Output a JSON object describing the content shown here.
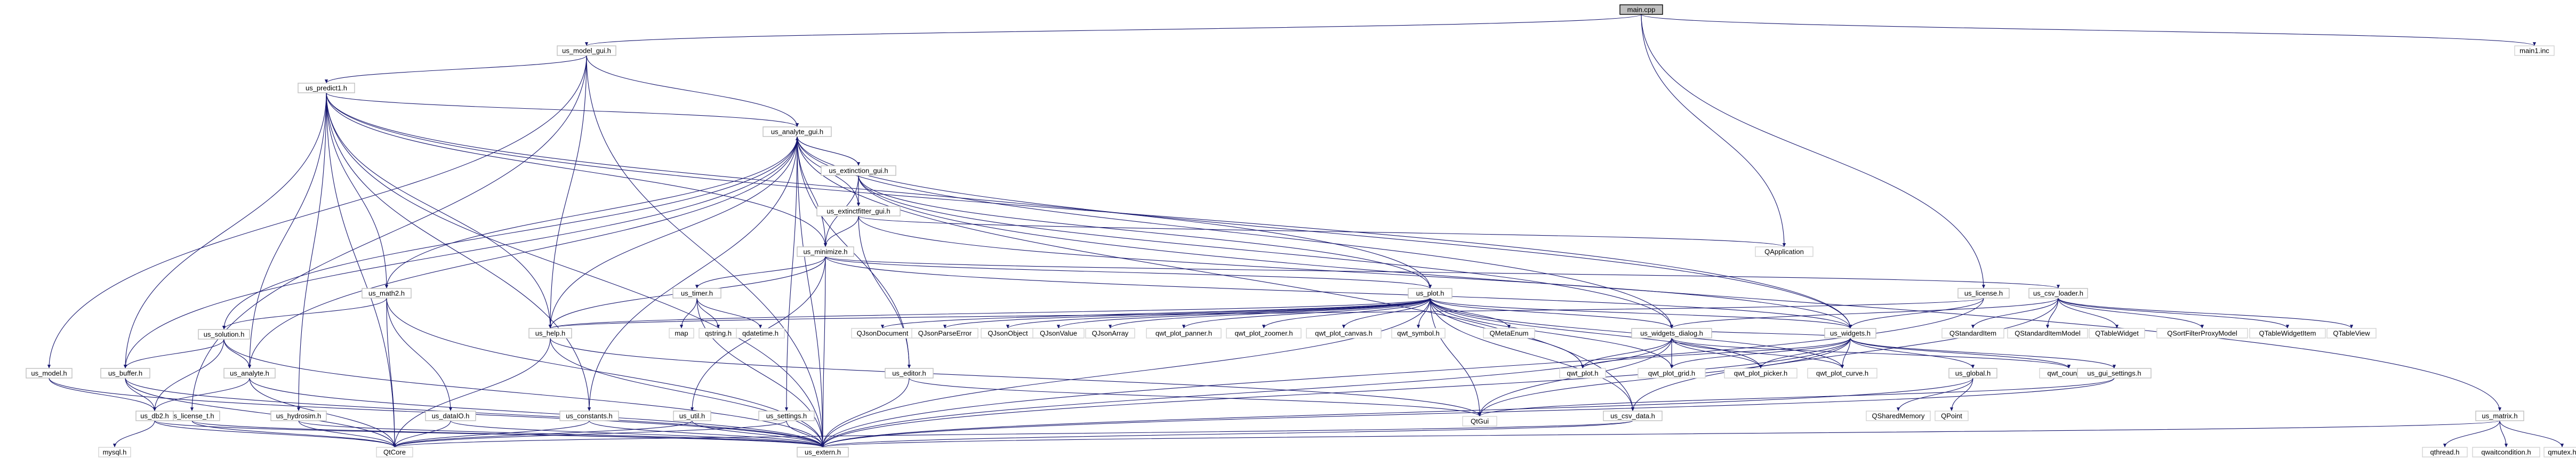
{
  "diagram": {
    "type": "include-dependency-graph",
    "root": "main.cpp",
    "nodes": [
      {
        "id": "main_cpp",
        "label": "main.cpp"
      },
      {
        "id": "us_model_gui",
        "label": "us_model_gui.h"
      },
      {
        "id": "main1_inc",
        "label": "main1.inc"
      },
      {
        "id": "us_predict1",
        "label": "us_predict1.h"
      },
      {
        "id": "us_analyte_gui",
        "label": "us_analyte_gui.h"
      },
      {
        "id": "us_extinction_gui",
        "label": "us_extinction_gui.h"
      },
      {
        "id": "us_extinctfitter_gui",
        "label": "us_extinctfitter_gui.h"
      },
      {
        "id": "qapplication",
        "label": "QApplication"
      },
      {
        "id": "us_minimize",
        "label": "us_minimize.h"
      },
      {
        "id": "us_math2",
        "label": "us_math2.h"
      },
      {
        "id": "us_timer",
        "label": "us_timer.h"
      },
      {
        "id": "us_plot",
        "label": "us_plot.h"
      },
      {
        "id": "us_license",
        "label": "us_license.h"
      },
      {
        "id": "us_csv_loader",
        "label": "us_csv_loader.h"
      },
      {
        "id": "us_help",
        "label": "us_help.h"
      },
      {
        "id": "map",
        "label": "map"
      },
      {
        "id": "qstring",
        "label": "qstring.h"
      },
      {
        "id": "qdatetime",
        "label": "qdatetime.h"
      },
      {
        "id": "qjsondocument",
        "label": "QJsonDocument"
      },
      {
        "id": "qjsonparseerror",
        "label": "QJsonParseError"
      },
      {
        "id": "qjsonobject",
        "label": "QJsonObject"
      },
      {
        "id": "qjsonvalue",
        "label": "QJsonValue"
      },
      {
        "id": "qjsonarray",
        "label": "QJsonArray"
      },
      {
        "id": "qwt_plot_panner",
        "label": "qwt_plot_panner.h"
      },
      {
        "id": "qwt_plot_zoomer",
        "label": "qwt_plot_zoomer.h"
      },
      {
        "id": "qwt_plot_canvas",
        "label": "qwt_plot_canvas.h"
      },
      {
        "id": "qwt_symbol",
        "label": "qwt_symbol.h"
      },
      {
        "id": "qmetaenum",
        "label": "QMetaEnum"
      },
      {
        "id": "us_widgets_dialog",
        "label": "us_widgets_dialog.h"
      },
      {
        "id": "us_widgets",
        "label": "us_widgets.h"
      },
      {
        "id": "qstandarditem",
        "label": "QStandardItem"
      },
      {
        "id": "qstandarditemmodel",
        "label": "QStandardItemModel"
      },
      {
        "id": "qtablewidget",
        "label": "QTableWidget"
      },
      {
        "id": "qsortfilterproxymodel",
        "label": "QSortFilterProxyModel"
      },
      {
        "id": "qtablewidgetitem",
        "label": "QTableWidgetItem"
      },
      {
        "id": "qtableview",
        "label": "QTableView"
      },
      {
        "id": "us_solution",
        "label": "us_solution.h"
      },
      {
        "id": "us_model",
        "label": "us_model.h"
      },
      {
        "id": "us_buffer",
        "label": "us_buffer.h"
      },
      {
        "id": "us_analyte",
        "label": "us_analyte.h"
      },
      {
        "id": "us_license_t",
        "label": "us_license_t.h"
      },
      {
        "id": "us_db2",
        "label": "us_db2.h"
      },
      {
        "id": "mysql",
        "label": "mysql.h"
      },
      {
        "id": "us_hydrosim",
        "label": "us_hydrosim.h"
      },
      {
        "id": "us_dataio",
        "label": "us_dataIO.h"
      },
      {
        "id": "us_constants",
        "label": "us_constants.h"
      },
      {
        "id": "us_util",
        "label": "us_util.h"
      },
      {
        "id": "us_settings",
        "label": "us_settings.h"
      },
      {
        "id": "us_editor",
        "label": "us_editor.h"
      },
      {
        "id": "qtcore",
        "label": "QtCore"
      },
      {
        "id": "qtgui",
        "label": "QtGui"
      },
      {
        "id": "us_extern",
        "label": "us_extern.h"
      },
      {
        "id": "qwt_plot",
        "label": "qwt_plot.h"
      },
      {
        "id": "qwt_plot_grid",
        "label": "qwt_plot_grid.h"
      },
      {
        "id": "qwt_plot_picker",
        "label": "qwt_plot_picker.h"
      },
      {
        "id": "qwt_plot_curve",
        "label": "qwt_plot_curve.h"
      },
      {
        "id": "qwt_counter",
        "label": "qwt_counter.h"
      },
      {
        "id": "us_global",
        "label": "us_global.h"
      },
      {
        "id": "us_gui_settings",
        "label": "us_gui_settings.h"
      },
      {
        "id": "us_csv_data",
        "label": "us_csv_data.h"
      },
      {
        "id": "qsharedmemory",
        "label": "QSharedMemory"
      },
      {
        "id": "qpoint",
        "label": "QPoint"
      },
      {
        "id": "us_matrix",
        "label": "us_matrix.h"
      },
      {
        "id": "qthread",
        "label": "qthread.h"
      },
      {
        "id": "qwaitcondition",
        "label": "qwaitcondition.h"
      },
      {
        "id": "qmutex",
        "label": "qmutex.h"
      }
    ],
    "edges": [
      [
        "main_cpp",
        "us_model_gui"
      ],
      [
        "main_cpp",
        "main1_inc"
      ],
      [
        "main_cpp",
        "qapplication"
      ],
      [
        "main_cpp",
        "us_license"
      ],
      [
        "us_model_gui",
        "us_predict1"
      ],
      [
        "us_model_gui",
        "us_analyte_gui"
      ],
      [
        "us_model_gui",
        "us_model"
      ],
      [
        "us_model_gui",
        "us_help"
      ],
      [
        "us_model_gui",
        "us_license_t"
      ],
      [
        "us_model_gui",
        "us_extern"
      ],
      [
        "us_predict1",
        "us_analyte_gui"
      ],
      [
        "us_predict1",
        "us_plot"
      ],
      [
        "us_predict1",
        "us_math2"
      ],
      [
        "us_predict1",
        "us_help"
      ],
      [
        "us_predict1",
        "us_buffer"
      ],
      [
        "us_predict1",
        "us_analyte"
      ],
      [
        "us_predict1",
        "us_hydrosim"
      ],
      [
        "us_predict1",
        "us_constants"
      ],
      [
        "us_predict1",
        "us_minimize"
      ],
      [
        "us_predict1",
        "us_widgets"
      ],
      [
        "us_predict1",
        "qtcore"
      ],
      [
        "us_predict1",
        "us_extern"
      ],
      [
        "us_analyte_gui",
        "us_extinction_gui"
      ],
      [
        "us_analyte_gui",
        "us_extinctfitter_gui"
      ],
      [
        "us_analyte_gui",
        "us_minimize"
      ],
      [
        "us_analyte_gui",
        "us_math2"
      ],
      [
        "us_analyte_gui",
        "us_help"
      ],
      [
        "us_analyte_gui",
        "us_editor"
      ],
      [
        "us_analyte_gui",
        "us_widgets_dialog"
      ],
      [
        "us_analyte_gui",
        "us_widgets"
      ],
      [
        "us_analyte_gui",
        "us_analyte"
      ],
      [
        "us_analyte_gui",
        "us_solution"
      ],
      [
        "us_analyte_gui",
        "us_constants"
      ],
      [
        "us_analyte_gui",
        "us_buffer"
      ],
      [
        "us_analyte_gui",
        "us_settings"
      ],
      [
        "us_analyte_gui",
        "us_csv_data"
      ],
      [
        "us_analyte_gui",
        "us_extern"
      ],
      [
        "us_extinction_gui",
        "us_analyte_gui"
      ],
      [
        "us_extinction_gui",
        "us_extinctfitter_gui"
      ],
      [
        "us_extinction_gui",
        "us_minimize"
      ],
      [
        "us_extinction_gui",
        "us_plot"
      ],
      [
        "us_extinction_gui",
        "us_widgets_dialog"
      ],
      [
        "us_extinction_gui",
        "us_matrix"
      ],
      [
        "us_extinctfitter_gui",
        "us_minimize"
      ],
      [
        "us_extinctfitter_gui",
        "qapplication"
      ],
      [
        "us_extinctfitter_gui",
        "us_widgets"
      ],
      [
        "us_extinctfitter_gui",
        "us_editor"
      ],
      [
        "us_minimize",
        "us_plot"
      ],
      [
        "us_minimize",
        "us_timer"
      ],
      [
        "us_minimize",
        "us_help"
      ],
      [
        "us_minimize",
        "us_widgets"
      ],
      [
        "us_minimize",
        "us_csv_loader"
      ],
      [
        "us_minimize",
        "us_util"
      ],
      [
        "us_minimize",
        "us_extern"
      ],
      [
        "us_math2",
        "us_solution"
      ],
      [
        "us_math2",
        "us_dataio"
      ],
      [
        "us_math2",
        "qtcore"
      ],
      [
        "us_math2",
        "us_extern"
      ],
      [
        "us_timer",
        "map"
      ],
      [
        "us_timer",
        "qstring"
      ],
      [
        "us_timer",
        "qdatetime"
      ],
      [
        "us_timer",
        "us_extern"
      ],
      [
        "us_plot",
        "us_help"
      ],
      [
        "us_plot",
        "qjsondocument"
      ],
      [
        "us_plot",
        "qjsonparseerror"
      ],
      [
        "us_plot",
        "qjsonobject"
      ],
      [
        "us_plot",
        "qjsonvalue"
      ],
      [
        "us_plot",
        "qjsonarray"
      ],
      [
        "us_plot",
        "qwt_plot_panner"
      ],
      [
        "us_plot",
        "qwt_plot_zoomer"
      ],
      [
        "us_plot",
        "qwt_plot_canvas"
      ],
      [
        "us_plot",
        "qwt_symbol"
      ],
      [
        "us_plot",
        "qmetaenum"
      ],
      [
        "us_plot",
        "us_widgets_dialog"
      ],
      [
        "us_plot",
        "us_widgets"
      ],
      [
        "us_plot",
        "qwt_plot"
      ],
      [
        "us_plot",
        "qwt_plot_grid"
      ],
      [
        "us_plot",
        "qwt_plot_picker"
      ],
      [
        "us_plot",
        "qwt_plot_curve"
      ],
      [
        "us_plot",
        "us_csv_data"
      ],
      [
        "us_plot",
        "qtgui"
      ],
      [
        "us_plot",
        "us_extern"
      ],
      [
        "us_license",
        "us_help"
      ],
      [
        "us_license",
        "us_widgets"
      ],
      [
        "us_license",
        "us_extern"
      ],
      [
        "us_csv_loader",
        "us_widgets_dialog"
      ],
      [
        "us_csv_loader",
        "us_csv_data"
      ],
      [
        "us_csv_loader",
        "qstandarditem"
      ],
      [
        "us_csv_loader",
        "qstandarditemmodel"
      ],
      [
        "us_csv_loader",
        "qtablewidget"
      ],
      [
        "us_csv_loader",
        "qsortfilterproxymodel"
      ],
      [
        "us_csv_loader",
        "qtablewidgetitem"
      ],
      [
        "us_csv_loader",
        "qtableview"
      ],
      [
        "us_help",
        "qtcore"
      ],
      [
        "us_help",
        "qtgui"
      ],
      [
        "us_help",
        "us_extern"
      ],
      [
        "us_widgets_dialog",
        "us_widgets"
      ],
      [
        "us_widgets_dialog",
        "qwt_plot"
      ],
      [
        "us_widgets_dialog",
        "qwt_plot_grid"
      ],
      [
        "us_widgets_dialog",
        "qwt_plot_picker"
      ],
      [
        "us_widgets_dialog",
        "qwt_plot_curve"
      ],
      [
        "us_widgets_dialog",
        "qwt_counter"
      ],
      [
        "us_widgets_dialog",
        "qtgui"
      ],
      [
        "us_widgets_dialog",
        "us_extern"
      ],
      [
        "us_widgets",
        "qwt_plot"
      ],
      [
        "us_widgets",
        "qwt_plot_grid"
      ],
      [
        "us_widgets",
        "qwt_plot_picker"
      ],
      [
        "us_widgets",
        "qwt_plot_curve"
      ],
      [
        "us_widgets",
        "qwt_counter"
      ],
      [
        "us_widgets",
        "us_global"
      ],
      [
        "us_widgets",
        "us_gui_settings"
      ],
      [
        "us_widgets",
        "qtgui"
      ],
      [
        "us_widgets",
        "us_extern"
      ],
      [
        "us_solution",
        "us_buffer"
      ],
      [
        "us_solution",
        "us_analyte"
      ],
      [
        "us_solution",
        "us_db2"
      ],
      [
        "us_solution",
        "us_extern"
      ],
      [
        "us_model",
        "us_db2"
      ],
      [
        "us_model",
        "us_extern"
      ],
      [
        "us_buffer",
        "us_db2"
      ],
      [
        "us_buffer",
        "qtcore"
      ],
      [
        "us_buffer",
        "us_extern"
      ],
      [
        "us_analyte",
        "us_db2"
      ],
      [
        "us_analyte",
        "qtcore"
      ],
      [
        "us_analyte",
        "us_extern"
      ],
      [
        "us_license_t",
        "qtcore"
      ],
      [
        "us_license_t",
        "us_extern"
      ],
      [
        "us_db2",
        "mysql"
      ],
      [
        "us_db2",
        "qtcore"
      ],
      [
        "us_db2",
        "us_extern"
      ],
      [
        "us_hydrosim",
        "qtcore"
      ],
      [
        "us_hydrosim",
        "us_extern"
      ],
      [
        "us_dataio",
        "qtcore"
      ],
      [
        "us_dataio",
        "us_extern"
      ],
      [
        "us_constants",
        "qtcore"
      ],
      [
        "us_constants",
        "us_extern"
      ],
      [
        "us_util",
        "qtcore"
      ],
      [
        "us_util",
        "us_extern"
      ],
      [
        "us_settings",
        "qtcore"
      ],
      [
        "us_settings",
        "us_extern"
      ],
      [
        "us_editor",
        "qtgui"
      ],
      [
        "us_editor",
        "us_extern"
      ],
      [
        "us_global",
        "qsharedmemory"
      ],
      [
        "us_global",
        "qpoint"
      ],
      [
        "us_global",
        "us_extern"
      ],
      [
        "us_gui_settings",
        "qtgui"
      ],
      [
        "us_gui_settings",
        "us_extern"
      ],
      [
        "us_csv_data",
        "qtcore"
      ],
      [
        "us_csv_data",
        "us_extern"
      ],
      [
        "us_matrix",
        "qthread"
      ],
      [
        "us_matrix",
        "qwaitcondition"
      ],
      [
        "us_matrix",
        "qmutex"
      ],
      [
        "us_matrix",
        "us_extern"
      ]
    ]
  },
  "colors": {
    "edge": "#191970",
    "node_border": "#bfbfbf",
    "root_fill": "#bfbfbf",
    "root_border": "#000000",
    "background": "#ffffff"
  }
}
